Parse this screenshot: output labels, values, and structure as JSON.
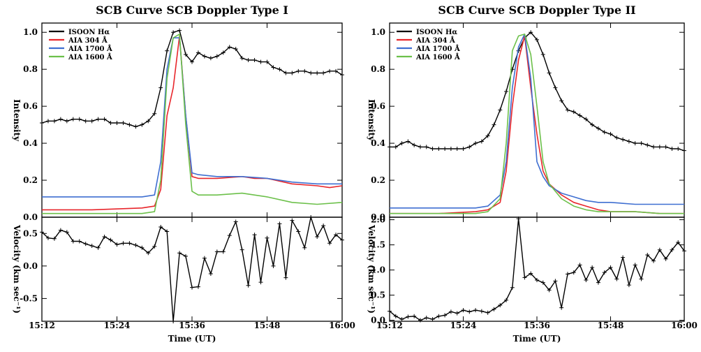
{
  "chart_data": [
    {
      "type": "line",
      "title": "SCB Curve SCB Doppler Type I",
      "xlabel": "Time (UT)",
      "xticks": [
        "15:12",
        "15:24",
        "15:36",
        "15:48",
        "16:00"
      ],
      "x_range": [
        "15:12",
        "16:00"
      ],
      "panels": [
        {
          "id": "intensity",
          "ylabel": "Intensity",
          "ylim": [
            0,
            1.05
          ],
          "yticks": [
            "0.0",
            "0.2",
            "0.4",
            "0.6",
            "0.8",
            "1.0"
          ],
          "legend_position": "top-left",
          "series": [
            {
              "name": "ISOON Hα",
              "color": "#000000",
              "markers": true,
              "x": [
                "15:12",
                "15:13",
                "15:14",
                "15:15",
                "15:16",
                "15:17",
                "15:18",
                "15:19",
                "15:20",
                "15:21",
                "15:22",
                "15:23",
                "15:24",
                "15:25",
                "15:26",
                "15:27",
                "15:28",
                "15:29",
                "15:30",
                "15:31",
                "15:32",
                "15:33",
                "15:34",
                "15:35",
                "15:36",
                "15:37",
                "15:38",
                "15:39",
                "15:40",
                "15:41",
                "15:42",
                "15:43",
                "15:44",
                "15:45",
                "15:46",
                "15:47",
                "15:48",
                "15:49",
                "15:50",
                "15:51",
                "15:52",
                "15:53",
                "15:54",
                "15:55",
                "15:56",
                "15:57",
                "15:58",
                "15:59",
                "16:00"
              ],
              "values": [
                0.51,
                0.52,
                0.52,
                0.53,
                0.52,
                0.53,
                0.53,
                0.52,
                0.52,
                0.53,
                0.53,
                0.51,
                0.51,
                0.51,
                0.5,
                0.49,
                0.5,
                0.52,
                0.56,
                0.7,
                0.9,
                1.0,
                1.01,
                0.88,
                0.84,
                0.89,
                0.87,
                0.86,
                0.87,
                0.89,
                0.92,
                0.91,
                0.86,
                0.85,
                0.85,
                0.84,
                0.84,
                0.81,
                0.8,
                0.78,
                0.78,
                0.79,
                0.79,
                0.78,
                0.78,
                0.78,
                0.79,
                0.79,
                0.77
              ]
            },
            {
              "name": "AIA 304 Å",
              "color": "#e8262b",
              "markers": false,
              "x": [
                "15:12",
                "15:20",
                "15:28",
                "15:30",
                "15:31",
                "15:32",
                "15:33",
                "15:34",
                "15:35",
                "15:36",
                "15:37",
                "15:40",
                "15:44",
                "15:46",
                "15:48",
                "15:52",
                "15:56",
                "15:58",
                "16:00"
              ],
              "values": [
                0.04,
                0.04,
                0.05,
                0.06,
                0.15,
                0.55,
                0.7,
                0.98,
                0.55,
                0.22,
                0.21,
                0.21,
                0.22,
                0.21,
                0.21,
                0.18,
                0.17,
                0.16,
                0.17
              ]
            },
            {
              "name": "AIA 1700 Å",
              "color": "#3f6fd1",
              "markers": false,
              "x": [
                "15:12",
                "15:20",
                "15:28",
                "15:30",
                "15:31",
                "15:32",
                "15:33",
                "15:34",
                "15:35",
                "15:36",
                "15:37",
                "15:40",
                "15:44",
                "15:48",
                "15:52",
                "15:56",
                "16:00"
              ],
              "values": [
                0.11,
                0.11,
                0.11,
                0.12,
                0.3,
                0.8,
                0.97,
                0.97,
                0.55,
                0.24,
                0.23,
                0.22,
                0.22,
                0.21,
                0.19,
                0.18,
                0.18
              ]
            },
            {
              "name": "AIA 1600 Å",
              "color": "#6cc04a",
              "markers": false,
              "x": [
                "15:12",
                "15:20",
                "15:28",
                "15:30",
                "15:31",
                "15:32",
                "15:33",
                "15:34",
                "15:35",
                "15:36",
                "15:37",
                "15:40",
                "15:44",
                "15:48",
                "15:52",
                "15:56",
                "16:00"
              ],
              "values": [
                0.02,
                0.02,
                0.02,
                0.03,
                0.2,
                0.75,
                0.97,
                0.99,
                0.5,
                0.14,
                0.12,
                0.12,
                0.13,
                0.11,
                0.08,
                0.07,
                0.08
              ]
            }
          ]
        },
        {
          "id": "velocity",
          "ylabel": "Velocity (km sec⁻¹)",
          "ylim": [
            -0.85,
            0.75
          ],
          "yticks": [
            "-0.5",
            "0.0",
            "0.5"
          ],
          "series": [
            {
              "name": "",
              "color": "#000000",
              "markers": true,
              "x": [
                "15:12",
                "15:13",
                "15:14",
                "15:15",
                "15:16",
                "15:17",
                "15:18",
                "15:19",
                "15:20",
                "15:21",
                "15:22",
                "15:23",
                "15:24",
                "15:25",
                "15:26",
                "15:27",
                "15:28",
                "15:29",
                "15:30",
                "15:31",
                "15:32",
                "15:33",
                "15:34",
                "15:35",
                "15:36",
                "15:37",
                "15:38",
                "15:39",
                "15:40",
                "15:41",
                "15:42",
                "15:43",
                "15:44",
                "15:45",
                "15:46",
                "15:47",
                "15:48",
                "15:49",
                "15:50",
                "15:51",
                "15:52",
                "15:53",
                "15:54",
                "15:55",
                "15:56",
                "15:57",
                "15:58",
                "15:59",
                "16:00"
              ],
              "values": [
                0.52,
                0.43,
                0.42,
                0.55,
                0.52,
                0.38,
                0.38,
                0.34,
                0.31,
                0.28,
                0.45,
                0.4,
                0.33,
                0.35,
                0.35,
                0.32,
                0.28,
                0.2,
                0.3,
                0.6,
                0.53,
                -0.85,
                0.2,
                0.15,
                -0.33,
                -0.32,
                0.12,
                -0.12,
                0.22,
                0.22,
                0.47,
                0.68,
                0.25,
                -0.3,
                0.48,
                -0.25,
                0.43,
                0.0,
                0.65,
                -0.18,
                0.7,
                0.53,
                0.28,
                0.75,
                0.45,
                0.62,
                0.35,
                0.48,
                0.4
              ]
            }
          ]
        }
      ]
    },
    {
      "type": "line",
      "title": "SCB Curve SCB Doppler Type II",
      "xlabel": "Time (UT)",
      "xticks": [
        "15:12",
        "15:24",
        "15:36",
        "15:48",
        "16:00"
      ],
      "x_range": [
        "15:12",
        "16:00"
      ],
      "panels": [
        {
          "id": "intensity",
          "ylabel": "Intensity",
          "ylim": [
            0,
            1.05
          ],
          "yticks": [
            "0.0",
            "0.2",
            "0.4",
            "0.6",
            "0.8",
            "1.0"
          ],
          "legend_position": "top-left",
          "series": [
            {
              "name": "ISOON Hα",
              "color": "#000000",
              "markers": true,
              "x": [
                "15:12",
                "15:13",
                "15:14",
                "15:15",
                "15:16",
                "15:17",
                "15:18",
                "15:19",
                "15:20",
                "15:21",
                "15:22",
                "15:23",
                "15:24",
                "15:25",
                "15:26",
                "15:27",
                "15:28",
                "15:29",
                "15:30",
                "15:31",
                "15:32",
                "15:33",
                "15:34",
                "15:35",
                "15:36",
                "15:37",
                "15:38",
                "15:39",
                "15:40",
                "15:41",
                "15:42",
                "15:43",
                "15:44",
                "15:45",
                "15:46",
                "15:47",
                "15:48",
                "15:49",
                "15:50",
                "15:51",
                "15:52",
                "15:53",
                "15:54",
                "15:55",
                "15:56",
                "15:57",
                "15:58",
                "15:59",
                "16:00"
              ],
              "values": [
                0.38,
                0.38,
                0.4,
                0.41,
                0.39,
                0.38,
                0.38,
                0.37,
                0.37,
                0.37,
                0.37,
                0.37,
                0.37,
                0.38,
                0.4,
                0.41,
                0.44,
                0.5,
                0.58,
                0.68,
                0.8,
                0.9,
                0.97,
                1.0,
                0.96,
                0.88,
                0.78,
                0.7,
                0.63,
                0.58,
                0.57,
                0.55,
                0.53,
                0.5,
                0.48,
                0.46,
                0.45,
                0.43,
                0.42,
                0.41,
                0.4,
                0.4,
                0.39,
                0.38,
                0.38,
                0.38,
                0.37,
                0.37,
                0.36
              ]
            },
            {
              "name": "AIA 304 Å",
              "color": "#e8262b",
              "markers": false,
              "x": [
                "15:12",
                "15:20",
                "15:26",
                "15:28",
                "15:30",
                "15:31",
                "15:32",
                "15:33",
                "15:34",
                "15:35",
                "15:36",
                "15:37",
                "15:38",
                "15:40",
                "15:42",
                "15:44",
                "15:46",
                "15:48",
                "15:52",
                "15:56",
                "16:00"
              ],
              "values": [
                0.02,
                0.02,
                0.03,
                0.04,
                0.08,
                0.25,
                0.6,
                0.85,
                0.98,
                0.7,
                0.45,
                0.25,
                0.18,
                0.12,
                0.08,
                0.06,
                0.04,
                0.03,
                0.03,
                0.02,
                0.02
              ]
            },
            {
              "name": "AIA 1700 Å",
              "color": "#3f6fd1",
              "markers": false,
              "x": [
                "15:12",
                "15:20",
                "15:26",
                "15:28",
                "15:30",
                "15:31",
                "15:32",
                "15:33",
                "15:34",
                "15:35",
                "15:36",
                "15:37",
                "15:38",
                "15:40",
                "15:42",
                "15:44",
                "15:46",
                "15:48",
                "15:52",
                "15:56",
                "16:00"
              ],
              "values": [
                0.05,
                0.05,
                0.05,
                0.06,
                0.12,
                0.3,
                0.7,
                0.92,
                0.99,
                0.75,
                0.3,
                0.22,
                0.17,
                0.13,
                0.11,
                0.09,
                0.08,
                0.08,
                0.07,
                0.07,
                0.07
              ]
            },
            {
              "name": "AIA 1600 Å",
              "color": "#6cc04a",
              "markers": false,
              "x": [
                "15:12",
                "15:20",
                "15:26",
                "15:28",
                "15:30",
                "15:31",
                "15:32",
                "15:33",
                "15:34",
                "15:35",
                "15:36",
                "15:37",
                "15:38",
                "15:40",
                "15:42",
                "15:44",
                "15:46",
                "15:48",
                "15:52",
                "15:56",
                "16:00"
              ],
              "values": [
                0.02,
                0.02,
                0.02,
                0.03,
                0.1,
                0.4,
                0.9,
                0.98,
                0.99,
                0.88,
                0.6,
                0.3,
                0.18,
                0.1,
                0.06,
                0.04,
                0.03,
                0.03,
                0.03,
                0.02,
                0.02
              ]
            }
          ]
        },
        {
          "id": "velocity",
          "ylabel": "Velocity (km sec⁻¹)",
          "ylim": [
            -0.02,
            2.05
          ],
          "yticks": [
            "0.0",
            "0.5",
            "1.0",
            "1.5",
            "2.0"
          ],
          "series": [
            {
              "name": "",
              "color": "#000000",
              "markers": true,
              "x": [
                "15:12",
                "15:13",
                "15:14",
                "15:15",
                "15:16",
                "15:17",
                "15:18",
                "15:19",
                "15:20",
                "15:21",
                "15:22",
                "15:23",
                "15:24",
                "15:25",
                "15:26",
                "15:27",
                "15:28",
                "15:29",
                "15:30",
                "15:31",
                "15:32",
                "15:33",
                "15:34",
                "15:35",
                "15:36",
                "15:37",
                "15:38",
                "15:39",
                "15:40",
                "15:41",
                "15:42",
                "15:43",
                "15:44",
                "15:45",
                "15:46",
                "15:47",
                "15:48",
                "15:49",
                "15:50",
                "15:51",
                "15:52",
                "15:53",
                "15:54",
                "15:55",
                "15:56",
                "15:57",
                "15:58",
                "15:59",
                "16:00"
              ],
              "values": [
                0.18,
                0.08,
                0.02,
                0.07,
                0.08,
                0.0,
                0.05,
                0.02,
                0.08,
                0.1,
                0.17,
                0.14,
                0.2,
                0.17,
                0.2,
                0.18,
                0.15,
                0.22,
                0.3,
                0.4,
                0.65,
                2.02,
                0.85,
                0.93,
                0.8,
                0.75,
                0.6,
                0.78,
                0.25,
                0.92,
                0.95,
                1.1,
                0.8,
                1.05,
                0.75,
                0.95,
                1.05,
                0.82,
                1.25,
                0.7,
                1.1,
                0.82,
                1.3,
                1.18,
                1.4,
                1.22,
                1.4,
                1.55,
                1.38
              ]
            }
          ]
        }
      ]
    }
  ]
}
